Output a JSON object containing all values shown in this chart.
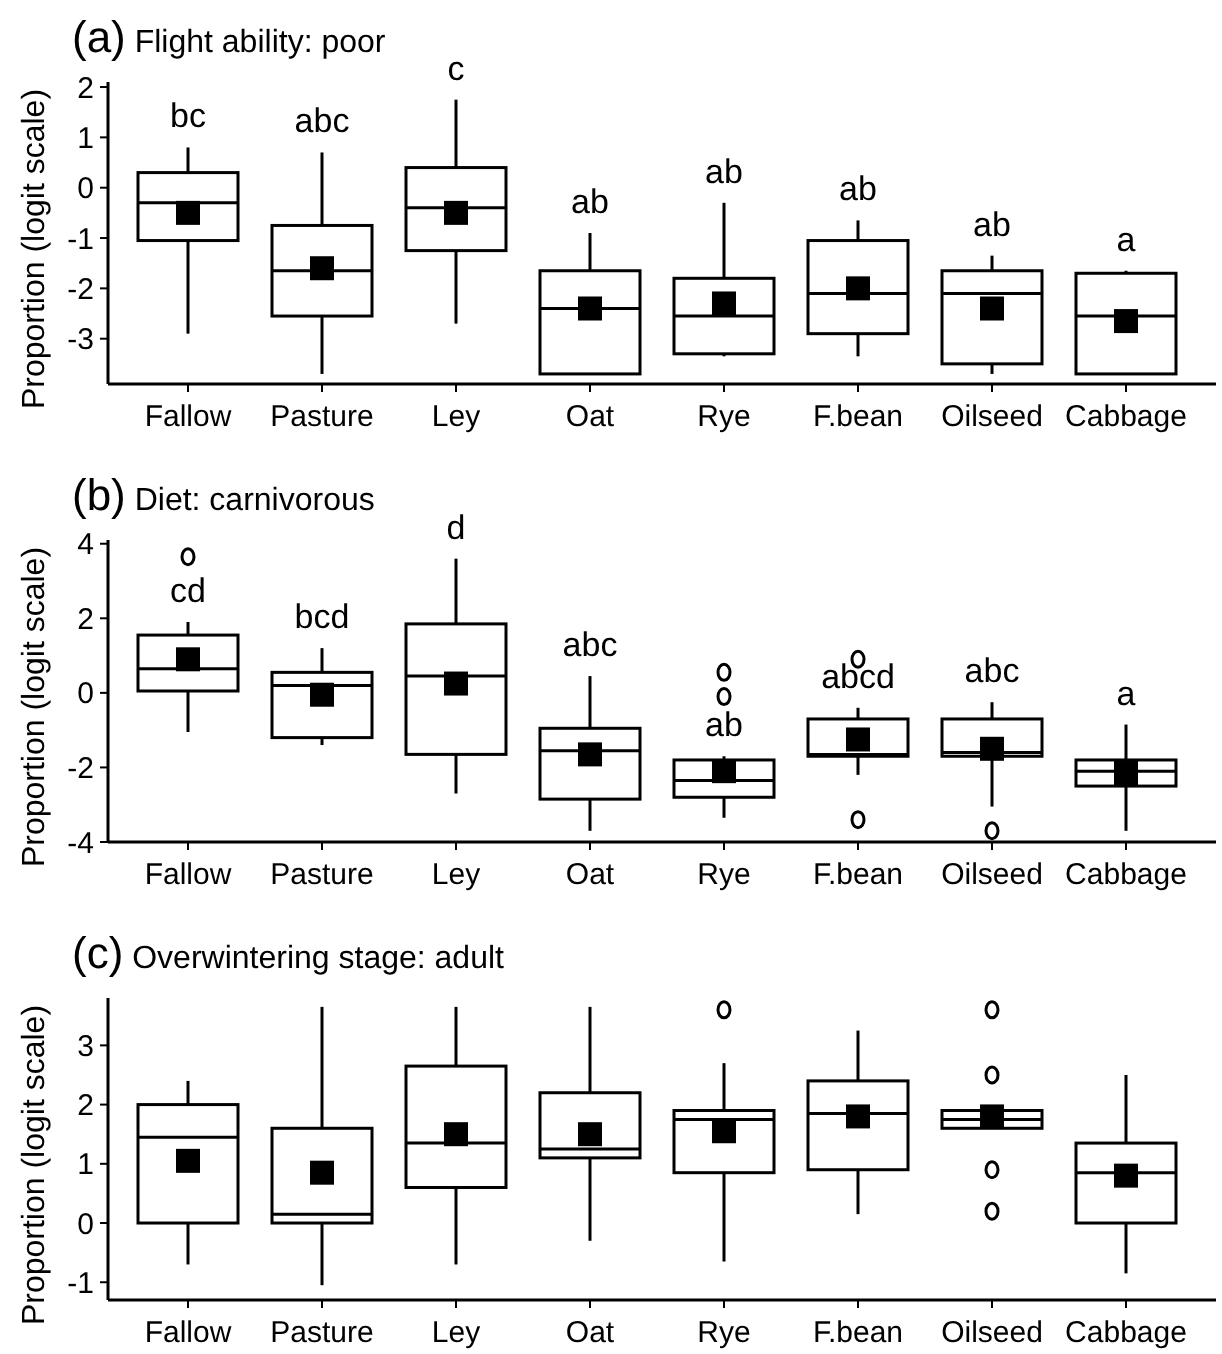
{
  "chart_data": [
    {
      "type": "box",
      "title": "(a) Flight ability: poor",
      "ylabel": "Proportion (logit scale)",
      "categories": [
        "Fallow",
        "Pasture",
        "Ley",
        "Oat",
        "Rye",
        "F.bean",
        "Oilseed",
        "Cabbage"
      ],
      "ylim": [
        -3.9,
        2.1
      ],
      "yticks": [
        -3,
        -2,
        -1,
        0,
        1,
        2
      ],
      "grid": false,
      "boxes": [
        {
          "low": -2.9,
          "q1": -1.05,
          "median": -0.3,
          "q3": 0.3,
          "high": 0.8,
          "mean": -0.5
        },
        {
          "low": -3.7,
          "q1": -2.55,
          "median": -1.65,
          "q3": -0.75,
          "high": 0.7,
          "mean": -1.6
        },
        {
          "low": -2.7,
          "q1": -1.25,
          "median": -0.4,
          "q3": 0.4,
          "high": 1.75,
          "mean": -0.5
        },
        {
          "low": -3.7,
          "q1": -3.7,
          "median": -2.4,
          "q3": -1.65,
          "high": -0.9,
          "mean": -2.4
        },
        {
          "low": -3.35,
          "q1": -3.3,
          "median": -2.55,
          "q3": -1.8,
          "high": -0.3,
          "mean": -2.3
        },
        {
          "low": -3.35,
          "q1": -2.9,
          "median": -2.1,
          "q3": -1.05,
          "high": -0.65,
          "mean": -2.0
        },
        {
          "low": -3.7,
          "q1": -3.5,
          "median": -2.1,
          "q3": -1.65,
          "high": -1.35,
          "mean": -2.4
        },
        {
          "low": -3.7,
          "q1": -3.7,
          "median": -2.55,
          "q3": -1.7,
          "high": -1.65,
          "mean": -2.65
        }
      ],
      "annotations": [
        "bc",
        "abc",
        "c",
        "ab",
        "ab",
        "ab",
        "ab",
        "a"
      ]
    },
    {
      "type": "box",
      "title": "(b) Diet: carnivorous",
      "ylabel": "Proportion (logit scale)",
      "categories": [
        "Fallow",
        "Pasture",
        "Ley",
        "Oat",
        "Rye",
        "F.bean",
        "Oilseed",
        "Cabbage"
      ],
      "ylim": [
        -4,
        4.1
      ],
      "yticks": [
        -4,
        -2,
        0,
        2,
        4
      ],
      "grid": false,
      "boxes": [
        {
          "low": -1.05,
          "q1": 0.05,
          "median": 0.65,
          "q3": 1.55,
          "high": 1.9,
          "mean": 0.9,
          "outliers": [
            3.65
          ]
        },
        {
          "low": -1.4,
          "q1": -1.2,
          "median": 0.2,
          "q3": 0.55,
          "high": 1.2,
          "mean": -0.05
        },
        {
          "low": -2.7,
          "q1": -1.65,
          "median": 0.45,
          "q3": 1.85,
          "high": 3.6,
          "mean": 0.25
        },
        {
          "low": -3.7,
          "q1": -2.85,
          "median": -1.55,
          "q3": -0.95,
          "high": 0.45,
          "mean": -1.65
        },
        {
          "low": -3.35,
          "q1": -2.8,
          "median": -2.35,
          "q3": -1.8,
          "high": -1.7,
          "mean": -2.1,
          "outliers": [
            0.55,
            -0.1
          ]
        },
        {
          "low": -2.2,
          "q1": -1.7,
          "median": -1.65,
          "q3": -0.7,
          "high": -0.4,
          "mean": -1.25,
          "outliers": [
            0.9,
            -3.4
          ]
        },
        {
          "low": -3.05,
          "q1": -1.7,
          "median": -1.6,
          "q3": -0.7,
          "high": -0.25,
          "mean": -1.5,
          "outliers": [
            -3.7
          ]
        },
        {
          "low": -3.7,
          "q1": -2.5,
          "median": -2.1,
          "q3": -1.8,
          "high": -0.85,
          "mean": -2.15
        }
      ],
      "annotations": [
        "cd",
        "bcd",
        "d",
        "abc",
        "ab",
        "abcd",
        "abc",
        "a"
      ]
    },
    {
      "type": "box",
      "title": "(c) Overwintering stage: adult",
      "ylabel": "Proportion (logit scale)",
      "categories": [
        "Fallow",
        "Pasture",
        "Ley",
        "Oat",
        "Rye",
        "F.bean",
        "Oilseed",
        "Cabbage"
      ],
      "ylim": [
        -1.3,
        3.8
      ],
      "yticks": [
        -1,
        0,
        1,
        2,
        3
      ],
      "grid": false,
      "boxes": [
        {
          "low": -0.7,
          "q1": 0,
          "median": 1.45,
          "q3": 2.0,
          "high": 2.4,
          "mean": 1.05
        },
        {
          "low": -1.05,
          "q1": 0,
          "median": 0.15,
          "q3": 1.6,
          "high": 3.65,
          "mean": 0.85
        },
        {
          "low": -0.7,
          "q1": 0.6,
          "median": 1.35,
          "q3": 2.65,
          "high": 3.65,
          "mean": 1.5
        },
        {
          "low": -0.3,
          "q1": 1.1,
          "median": 1.25,
          "q3": 2.2,
          "high": 3.65,
          "mean": 1.5
        },
        {
          "low": -0.65,
          "q1": 0.85,
          "median": 1.75,
          "q3": 1.9,
          "high": 2.7,
          "mean": 1.55,
          "outliers": [
            3.6
          ]
        },
        {
          "low": 0.15,
          "q1": 0.9,
          "median": 1.85,
          "q3": 2.4,
          "high": 3.25,
          "mean": 1.8
        },
        {
          "low": 1.6,
          "q1": 1.6,
          "median": 1.75,
          "q3": 1.9,
          "high": 1.9,
          "mean": 1.8,
          "outliers": [
            3.6,
            2.5,
            0.9,
            0.2
          ]
        },
        {
          "low": -0.85,
          "q1": 0,
          "median": 0.85,
          "q3": 1.35,
          "high": 2.5,
          "mean": 0.8
        }
      ]
    }
  ]
}
